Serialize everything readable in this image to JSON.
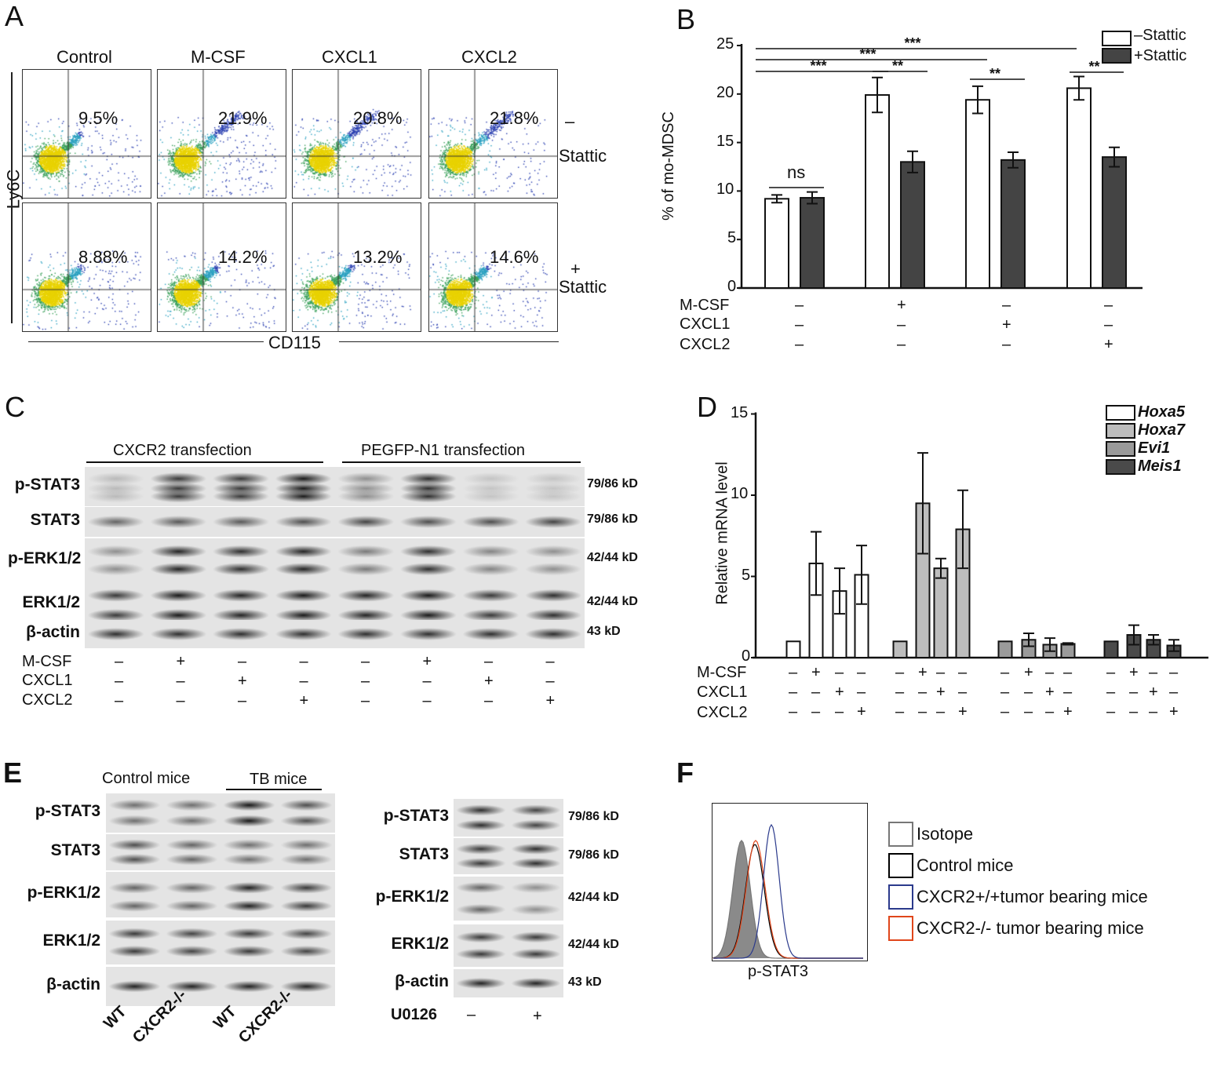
{
  "panels": {
    "a": "A",
    "b": "B",
    "c": "C",
    "d": "D",
    "e": "E",
    "f": "F"
  },
  "panel_a": {
    "columns": [
      "Control",
      "M-CSF",
      "CXCL1",
      "CXCL2"
    ],
    "row_labels": [
      {
        "sign": "–",
        "name": "Stattic"
      },
      {
        "sign": "+",
        "name": "Stattic"
      }
    ],
    "percents": [
      [
        "9.5%",
        "21.9%",
        "20.8%",
        "21.8%"
      ],
      [
        "8.88%",
        "14.2%",
        "13.2%",
        "14.6%"
      ]
    ],
    "ylabel": "Ly6C",
    "xlabel": "CD115"
  },
  "chart_data": [
    {
      "type": "bar",
      "panel": "B",
      "ylabel": "% of mo-MDSC",
      "ylim": [
        0,
        25
      ],
      "yticks": [
        "0",
        "5",
        "10",
        "15",
        "20",
        "25"
      ],
      "categories": [
        "1",
        "2",
        "3",
        "4"
      ],
      "conditions": {
        "labels": [
          "M-CSF",
          "CXCL1",
          "CXCL2"
        ],
        "signs": [
          [
            "–",
            "+",
            "–",
            "–"
          ],
          [
            "–",
            "–",
            "+",
            "–"
          ],
          [
            "–",
            "–",
            "–",
            "+"
          ]
        ]
      },
      "series": [
        {
          "name": "–Stattic",
          "color": "#ffffff",
          "values": [
            9.2,
            19.9,
            19.4,
            20.6
          ],
          "errors": [
            0.4,
            1.8,
            1.4,
            1.2
          ]
        },
        {
          "name": "+Stattic",
          "color": "#444444",
          "values": [
            9.3,
            13.0,
            13.2,
            13.5
          ],
          "errors": [
            0.6,
            1.1,
            0.8,
            1.0
          ]
        }
      ],
      "legend": "top-right",
      "annotations": [
        {
          "text": "***"
        },
        {
          "text": "***"
        },
        {
          "text": "***"
        },
        {
          "text": "**"
        },
        {
          "text": "**"
        },
        {
          "text": "**"
        },
        {
          "text": "ns"
        }
      ]
    },
    {
      "type": "bar",
      "panel": "D",
      "ylabel": "Relative mRNA level",
      "ylim": [
        0,
        15
      ],
      "yticks": [
        "0",
        "5",
        "10",
        "15"
      ],
      "conditions": {
        "labels": [
          "M-CSF",
          "CXCL1",
          "CXCL2"
        ],
        "signs": [
          [
            "–",
            "+",
            "–",
            "–"
          ],
          [
            "–",
            "–",
            "+",
            "–"
          ],
          [
            "–",
            "–",
            "–",
            "+"
          ]
        ]
      },
      "series": [
        {
          "name": "Hoxa5",
          "color": "#ffffff",
          "values": [
            1,
            5.8,
            4.1,
            5.1
          ],
          "errors": [
            0,
            1.95,
            1.4,
            1.8
          ]
        },
        {
          "name": "Hoxa7",
          "color": "#bdbdbd",
          "values": [
            1,
            9.5,
            5.5,
            7.9
          ],
          "errors": [
            0,
            3.1,
            0.6,
            2.4
          ]
        },
        {
          "name": "Evi1",
          "color": "#9a9a9a",
          "values": [
            1,
            1.1,
            0.8,
            0.85
          ],
          "errors": [
            0,
            0.4,
            0.4,
            0.05
          ]
        },
        {
          "name": "Meis1",
          "color": "#4a4a4a",
          "values": [
            1,
            1.4,
            1.1,
            0.75
          ],
          "errors": [
            0,
            0.6,
            0.3,
            0.35
          ]
        }
      ],
      "legend": "top-right"
    }
  ],
  "panel_c": {
    "groups": [
      "CXCR2 transfection",
      "PEGFP-N1 transfection"
    ],
    "rows": [
      {
        "label": "p-STAT3",
        "kd": "79/86 kD"
      },
      {
        "label": "STAT3",
        "kd": "79/86 kD"
      },
      {
        "label": "p-ERK1/2",
        "kd": "42/44 kD"
      },
      {
        "label": "ERK1/2",
        "kd": "42/44 kD"
      },
      {
        "label": "β-actin",
        "kd": "43 kD"
      }
    ],
    "conditions": {
      "labels": [
        "M-CSF",
        "CXCL1",
        "CXCL2"
      ],
      "signs": [
        [
          "–",
          "+",
          "–",
          "–",
          "–",
          "+",
          "–",
          "–"
        ],
        [
          "–",
          "–",
          "+",
          "–",
          "–",
          "–",
          "+",
          "–"
        ],
        [
          "–",
          "–",
          "–",
          "+",
          "–",
          "–",
          "–",
          "+"
        ]
      ]
    }
  },
  "panel_e": {
    "groups": [
      "Control mice",
      "TB mice"
    ],
    "left_rows": [
      "p-STAT3",
      "STAT3",
      "p-ERK1/2",
      "ERK1/2",
      "β-actin"
    ],
    "lanes": [
      "WT",
      "CXCR2-/-",
      "WT",
      "CXCR2-/-"
    ],
    "right_rows": [
      {
        "label": "p-STAT3",
        "kd": "79/86 kD"
      },
      {
        "label": "STAT3",
        "kd": "79/86 kD"
      },
      {
        "label": "p-ERK1/2",
        "kd": "42/44 kD"
      },
      {
        "label": "ERK1/2",
        "kd": "42/44 kD"
      },
      {
        "label": "β-actin",
        "kd": "43 kD"
      }
    ],
    "treatment": {
      "label": "U0126",
      "signs": [
        "–",
        "+"
      ]
    }
  },
  "panel_f": {
    "xlabel": "p-STAT3",
    "legend": [
      {
        "name": "Isotope",
        "color": "#777777"
      },
      {
        "name": "Control mice",
        "color": "#000000"
      },
      {
        "name": "CXCR2+/+tumor bearing mice",
        "color": "#2b3a8c"
      },
      {
        "name": "CXCR2-/- tumor bearing mice",
        "color": "#e0461b"
      }
    ]
  }
}
